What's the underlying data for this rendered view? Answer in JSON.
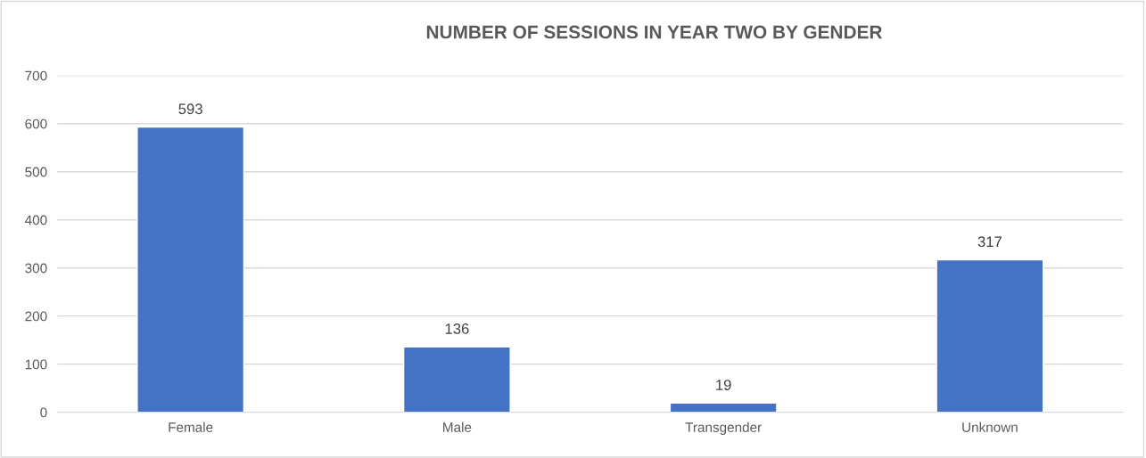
{
  "chart_data": {
    "type": "bar",
    "title": "NUMBER OF SESSIONS IN YEAR TWO BY GENDER",
    "categories": [
      "Female",
      "Male",
      "Transgender",
      "Unknown"
    ],
    "values": [
      593,
      136,
      19,
      317
    ],
    "color": "#4472c4",
    "ylim": [
      0,
      700
    ],
    "yticks": [
      0,
      100,
      200,
      300,
      400,
      500,
      600,
      700
    ],
    "grid": "y",
    "data_labels": true
  }
}
